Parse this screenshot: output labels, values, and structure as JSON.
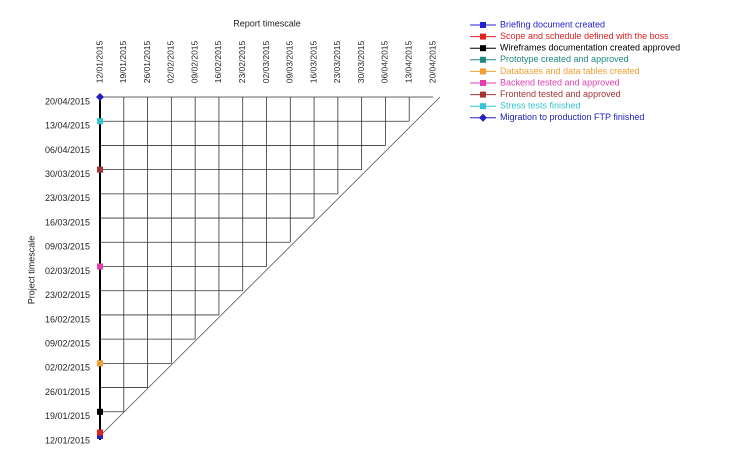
{
  "chart_data": {
    "type": "milestone-trend",
    "x_label": "Report timescale",
    "y_label": "Project timescale",
    "xlim": [
      "12/01/2015",
      "20/04/2015"
    ],
    "ylim": [
      "12/01/2015",
      "20/04/2015"
    ],
    "xticks": [
      "12/01/2015",
      "19/01/2015",
      "26/01/2015",
      "02/02/2015",
      "09/02/2015",
      "16/02/2015",
      "23/02/2015",
      "02/03/2015",
      "09/03/2015",
      "16/03/2015",
      "23/03/2015",
      "30/03/2015",
      "06/04/2015",
      "13/04/2015",
      "20/04/2015"
    ],
    "yticks": [
      "12/01/2015",
      "19/01/2015",
      "26/01/2015",
      "02/02/2015",
      "09/02/2015",
      "16/02/2015",
      "23/02/2015",
      "02/03/2015",
      "09/03/2015",
      "16/03/2015",
      "23/03/2015",
      "30/03/2015",
      "06/04/2015",
      "13/04/2015",
      "20/04/2015"
    ],
    "grid": true,
    "series": [
      {
        "name": "Briefing document created",
        "color": "#2222cc",
        "marker": "square",
        "x": [
          "12/01/2015"
        ],
        "values": [
          "12/01/2015"
        ]
      },
      {
        "name": "Scope and schedule defined with the boss",
        "color": "#dd2222",
        "marker": "square",
        "x": [
          "12/01/2015"
        ],
        "values": [
          "13/01/2015"
        ]
      },
      {
        "name": "Wireframes documentation created approved",
        "color": "#000000",
        "marker": "square",
        "x": [
          "12/01/2015"
        ],
        "values": [
          "19/01/2015"
        ]
      },
      {
        "name": "Prototype created and approved",
        "color": "#1f8a80",
        "marker": "square",
        "x": [
          "12/01/2015"
        ],
        "values": [
          "02/02/2015"
        ]
      },
      {
        "name": "Databases and data tables created",
        "color": "#f0a030",
        "marker": "square",
        "x": [
          "12/01/2015"
        ],
        "values": [
          "02/02/2015"
        ]
      },
      {
        "name": "Backend tested and approved",
        "color": "#e03fb0",
        "marker": "square",
        "x": [
          "12/01/2015"
        ],
        "values": [
          "02/03/2015"
        ]
      },
      {
        "name": "Frontend tested and approved",
        "color": "#a33434",
        "marker": "square",
        "x": [
          "12/01/2015"
        ],
        "values": [
          "30/03/2015"
        ]
      },
      {
        "name": "Stress tests finished",
        "color": "#33c6d0",
        "marker": "square",
        "x": [
          "12/01/2015"
        ],
        "values": [
          "13/04/2015"
        ]
      },
      {
        "name": "Migration to production FTP finished",
        "color": "#2222bb",
        "marker": "diamond",
        "x": [
          "12/01/2015"
        ],
        "values": [
          "20/04/2015"
        ]
      }
    ]
  }
}
